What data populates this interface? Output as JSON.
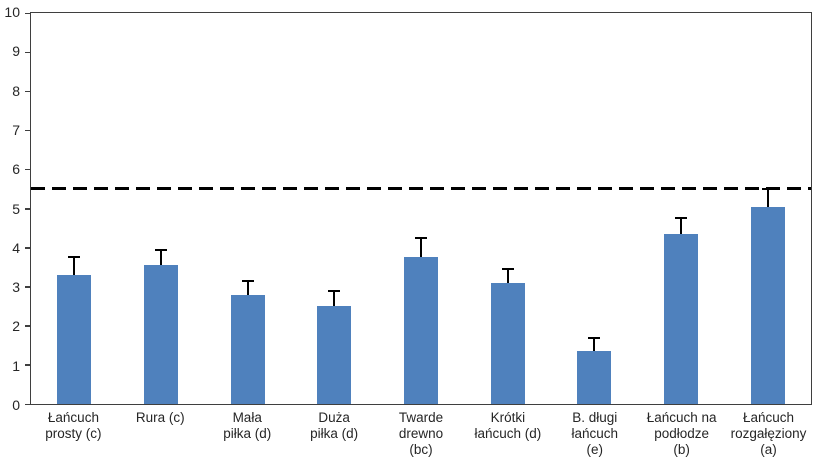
{
  "chart_data": {
    "type": "bar",
    "title": "",
    "xlabel": "",
    "ylabel": "",
    "categories": [
      "Łańcuch prosty (c)",
      "Rura (c)",
      "Mała piłka (d)",
      "Duża piłka (d)",
      "Twarde drewno (bc)",
      "Krótki łańcuch (d)",
      "B. długi łańcuch (e)",
      "Łańcuch na podłodze (b)",
      "Łańcuch rozgałęziony (a)"
    ],
    "x_tick_labels": [
      "Łańcuch\nprosty (c)",
      "Rura (c)",
      "Mała\npiłka (d)",
      "Duża\npiłka (d)",
      "Twarde\ndrewno\n(bc)",
      "Krótki\nłańcuch (d)",
      "B. długi\nłańcuch\n(e)",
      "Łańcuch na\npodłodze\n(b)",
      "Łańcuch\nrozgałęziony\n(a)"
    ],
    "values": [
      3.3,
      3.55,
      2.8,
      2.5,
      3.75,
      3.1,
      1.35,
      4.35,
      5.05
    ],
    "errors_plus": [
      0.45,
      0.4,
      0.35,
      0.4,
      0.5,
      0.35,
      0.35,
      0.4,
      0.45
    ],
    "reference_line": 5.5,
    "ylim": [
      0,
      10
    ],
    "y_ticks": [
      0,
      1,
      2,
      3,
      4,
      5,
      6,
      7,
      8,
      9,
      10
    ],
    "grid": false,
    "legend": "none",
    "colors": {
      "bar": "#4f81bd",
      "error_bar": "#000000",
      "reference_line": "#000000",
      "axis": "#3f3f3f",
      "text": "#262626"
    }
  }
}
